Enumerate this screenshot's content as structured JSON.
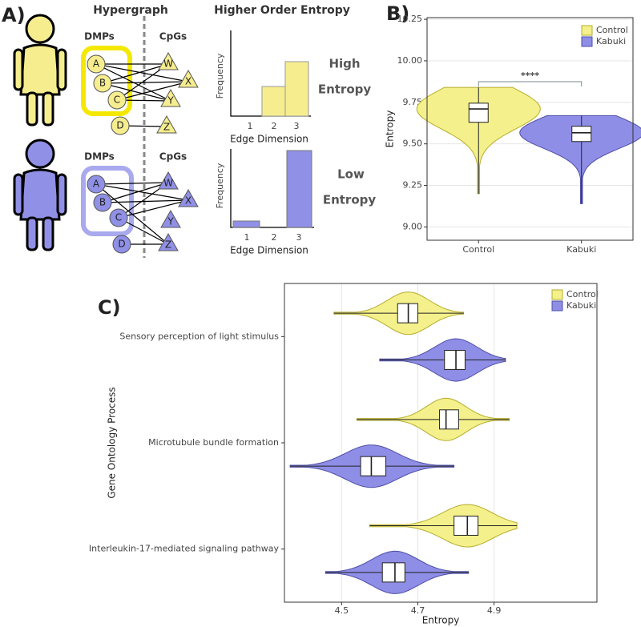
{
  "panel_a": {
    "label": "A)",
    "hypergraph": "Hypergraph",
    "entropy_title": "Higher Order Entropy",
    "groups": [
      {
        "left": "DMPs",
        "right": "CpGs",
        "dmps": [
          "A",
          "B",
          "C",
          "D"
        ],
        "cpgs": [
          "W",
          "X",
          "Y",
          "Z"
        ],
        "entropy": [
          "High",
          "Entropy"
        ],
        "y_label": "Frequency",
        "x_label": "Edge Dimension",
        "x_ticks": [
          "1",
          "2",
          "3"
        ]
      },
      {
        "left": "DMPs",
        "right": "CpGs",
        "dmps": [
          "A",
          "B",
          "C",
          "D"
        ],
        "cpgs": [
          "W",
          "X",
          "Y",
          "Z"
        ],
        "entropy": [
          "Low",
          "Entropy"
        ],
        "y_label": "Frequency",
        "x_label": "Edge Dimension",
        "x_ticks": [
          "1",
          "2",
          "3"
        ]
      }
    ]
  },
  "chart_data": [
    {
      "type": "violin",
      "orientation": "vertical",
      "panel": "B)",
      "categories": [
        "Control",
        "Kabuki"
      ],
      "y_label": "Entropy",
      "ylim": [
        8.92,
        10.26
      ],
      "yticks": [
        {
          "value": 9,
          "label": "9.00"
        },
        {
          "value": 9.25,
          "label": "9.25"
        },
        {
          "value": 9.5,
          "label": "9.50"
        },
        {
          "value": 9.75,
          "label": "9.75"
        },
        {
          "value": 10,
          "label": "10.00"
        },
        {
          "value": 10.25,
          "label": "10.25"
        }
      ],
      "grid": true,
      "legend": "top-right",
      "annotation": "****",
      "series": [
        {
          "name": "Control",
          "color": "#f4f08b",
          "values": [
            {
              "min": 9.2,
              "q1": 9.63,
              "median": 9.71,
              "q3": 9.745,
              "max": 9.84
            },
            null
          ]
        },
        {
          "name": "Kabuki",
          "color": "#8e8ee6",
          "values": [
            null,
            {
              "min": 9.14,
              "q1": 9.514,
              "median": 9.567,
              "q3": 9.606,
              "max": 9.67
            }
          ]
        }
      ]
    },
    {
      "type": "violin",
      "orientation": "horizontal",
      "panel": "C)",
      "categories": [
        "Sensory perception of light stimulus",
        "Microtubule bundle formation",
        "Interleukin-17-mediated signaling pathway"
      ],
      "x_label": "Entropy",
      "y_label": "Gene Ontology Process",
      "xlim": [
        4.35,
        5.17
      ],
      "xticks": [
        4.5,
        4.7,
        4.9
      ],
      "grid": true,
      "legend": "top-right",
      "series": [
        {
          "name": "Control",
          "color": "#f4f08b",
          "values": [
            {
              "min": 4.48,
              "q1": 4.647,
              "median": 4.675,
              "q3": 4.7,
              "max": 4.82
            },
            {
              "min": 4.54,
              "q1": 4.757,
              "median": 4.774,
              "q3": 4.807,
              "max": 4.94
            },
            {
              "min": 4.574,
              "q1": 4.795,
              "median": 4.83,
              "q3": 4.858,
              "max": 4.96
            }
          ]
        },
        {
          "name": "Kabuki",
          "color": "#8e8ee6",
          "values": [
            {
              "min": 4.6,
              "q1": 4.77,
              "median": 4.8,
              "q3": 4.824,
              "max": 4.93
            },
            {
              "min": 4.365,
              "q1": 4.55,
              "median": 4.578,
              "q3": 4.616,
              "max": 4.795
            },
            {
              "min": 4.458,
              "q1": 4.607,
              "median": 4.64,
              "q3": 4.666,
              "max": 4.833
            }
          ]
        }
      ]
    }
  ]
}
